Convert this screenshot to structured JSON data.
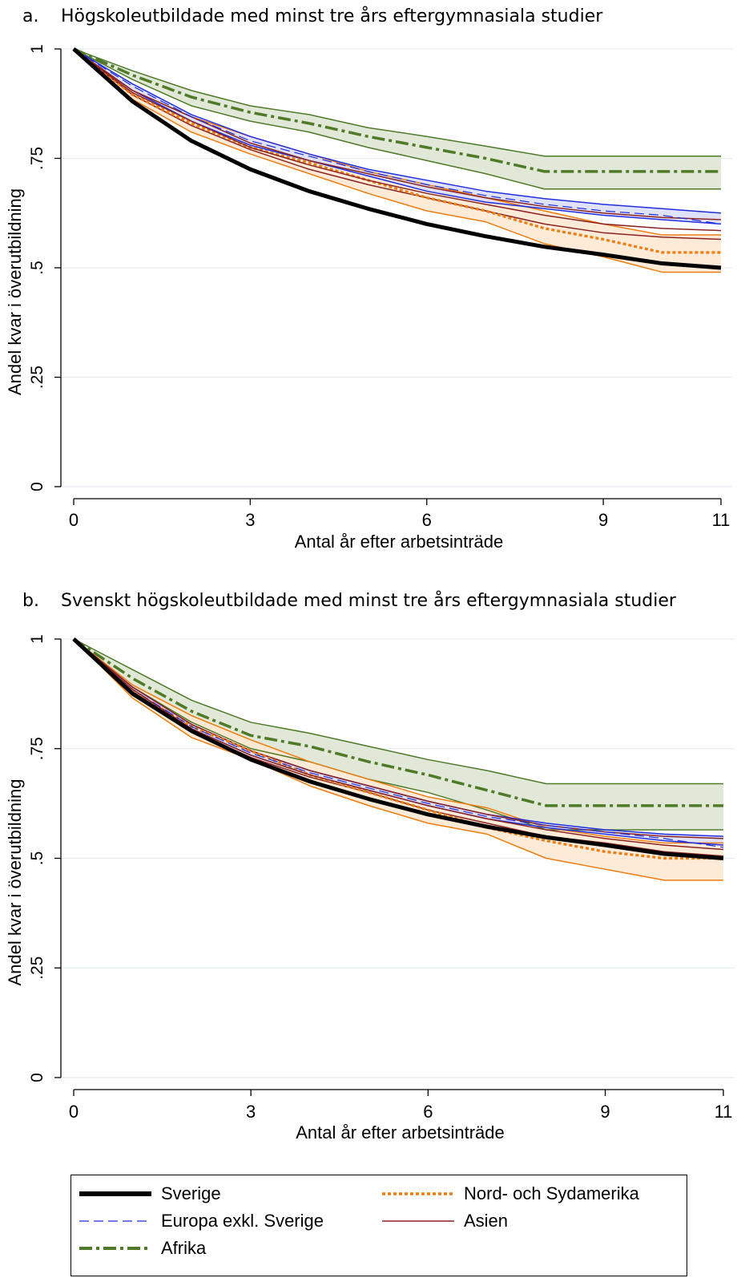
{
  "panels": [
    {
      "letter": "a.",
      "title": "Högskoleutbildade med minst tre års eftergymnasiala studier"
    },
    {
      "letter": "b.",
      "title": "Svenskt högskoleutbildade med minst tre års eftergymnasiala studier"
    }
  ],
  "legend": [
    {
      "label": "Sverige"
    },
    {
      "label": "Nord- och Sydamerika"
    },
    {
      "label": "Europa exkl. Sverige"
    },
    {
      "label": "Asien"
    },
    {
      "label": "Afrika"
    }
  ],
  "chart_data": [
    {
      "type": "line",
      "title": "Högskoleutbildade med minst tre års eftergymnasiala studier",
      "xlabel": "Antal år efter arbetsinträde",
      "ylabel": "Andel kvar i överutbildning",
      "xticks": [
        "0",
        "3",
        "6",
        "9",
        "11"
      ],
      "yticks": [
        "0",
        ".25",
        ".5",
        ".75",
        "1"
      ],
      "xlim": [
        0,
        11
      ],
      "ylim": [
        0,
        1
      ],
      "x": [
        0,
        1,
        2,
        3,
        4,
        5,
        6,
        7,
        8,
        9,
        10,
        11
      ],
      "series": [
        {
          "name": "Afrika",
          "color": "#4f7a28",
          "values": [
            1,
            0.94,
            0.89,
            0.855,
            0.83,
            0.8,
            0.775,
            0.75,
            0.72,
            0.72,
            0.72,
            0.72
          ],
          "ci_low": [
            1,
            0.93,
            0.87,
            0.835,
            0.81,
            0.775,
            0.745,
            0.715,
            0.68,
            0.68,
            0.68,
            0.68
          ],
          "ci_high": [
            1,
            0.95,
            0.905,
            0.87,
            0.85,
            0.82,
            0.8,
            0.778,
            0.755,
            0.755,
            0.755,
            0.755
          ]
        },
        {
          "name": "Nord- och Sydamerika",
          "color": "#ed7d10",
          "values": [
            1,
            0.895,
            0.83,
            0.775,
            0.74,
            0.7,
            0.66,
            0.63,
            0.59,
            0.565,
            0.535,
            0.535
          ],
          "ci_low": [
            1,
            0.885,
            0.81,
            0.76,
            0.715,
            0.67,
            0.63,
            0.605,
            0.555,
            0.525,
            0.49,
            0.49
          ],
          "ci_high": [
            1,
            0.905,
            0.845,
            0.8,
            0.76,
            0.72,
            0.69,
            0.66,
            0.63,
            0.6,
            0.575,
            0.575
          ]
        },
        {
          "name": "Europa exkl. Sverige",
          "color": "#1f2ee0",
          "values": [
            1,
            0.915,
            0.845,
            0.79,
            0.755,
            0.72,
            0.69,
            0.665,
            0.645,
            0.63,
            0.62,
            0.6
          ],
          "ci_low": [
            1,
            0.905,
            0.835,
            0.78,
            0.745,
            0.71,
            0.675,
            0.65,
            0.635,
            0.62,
            0.61,
            0.6
          ],
          "ci_high": [
            1,
            0.92,
            0.85,
            0.8,
            0.76,
            0.725,
            0.7,
            0.675,
            0.658,
            0.645,
            0.635,
            0.625
          ]
        },
        {
          "name": "Asien",
          "color": "#8b2323",
          "values": [
            1,
            0.9,
            0.835,
            0.775,
            0.735,
            0.7,
            0.67,
            0.645,
            0.62,
            0.6,
            0.59,
            0.585
          ],
          "ci_low": [
            1,
            0.895,
            0.825,
            0.77,
            0.725,
            0.69,
            0.66,
            0.63,
            0.6,
            0.58,
            0.57,
            0.565
          ],
          "ci_high": [
            1,
            0.905,
            0.845,
            0.785,
            0.745,
            0.715,
            0.685,
            0.66,
            0.64,
            0.625,
            0.615,
            0.61
          ]
        },
        {
          "name": "Sverige",
          "color": "#000000",
          "values": [
            1,
            0.88,
            0.79,
            0.725,
            0.675,
            0.635,
            0.6,
            0.572,
            0.548,
            0.53,
            0.51,
            0.5
          ]
        }
      ]
    },
    {
      "type": "line",
      "title": "Svenskt högskoleutbildade med minst tre års eftergymnasiala studier",
      "xlabel": "Antal år efter arbetsinträde",
      "ylabel": "Andel kvar i överutbildning",
      "xticks": [
        "0",
        "3",
        "6",
        "9",
        "11"
      ],
      "yticks": [
        "0",
        ".25",
        ".5",
        ".75",
        "1"
      ],
      "xlim": [
        0,
        11
      ],
      "ylim": [
        0,
        1
      ],
      "x": [
        0,
        1,
        2,
        3,
        4,
        5,
        6,
        7,
        8,
        9,
        10,
        11
      ],
      "series": [
        {
          "name": "Afrika",
          "color": "#4f7a28",
          "values": [
            1,
            0.91,
            0.835,
            0.78,
            0.755,
            0.72,
            0.69,
            0.655,
            0.62,
            0.62,
            0.62,
            0.62
          ],
          "ci_low": [
            1,
            0.89,
            0.81,
            0.75,
            0.72,
            0.68,
            0.65,
            0.61,
            0.565,
            0.565,
            0.565,
            0.565
          ],
          "ci_high": [
            1,
            0.93,
            0.86,
            0.81,
            0.785,
            0.755,
            0.725,
            0.7,
            0.67,
            0.67,
            0.67,
            0.67
          ]
        },
        {
          "name": "Nord- och Sydamerika",
          "color": "#ed7d10",
          "values": [
            1,
            0.88,
            0.8,
            0.745,
            0.69,
            0.65,
            0.61,
            0.57,
            0.54,
            0.515,
            0.5,
            0.5
          ],
          "ci_low": [
            1,
            0.865,
            0.775,
            0.725,
            0.665,
            0.62,
            0.58,
            0.555,
            0.5,
            0.475,
            0.45,
            0.45
          ],
          "ci_high": [
            1,
            0.895,
            0.825,
            0.77,
            0.72,
            0.68,
            0.64,
            0.615,
            0.57,
            0.55,
            0.535,
            0.535
          ]
        },
        {
          "name": "Europa exkl. Sverige",
          "color": "#1f2ee0",
          "values": [
            1,
            0.885,
            0.8,
            0.74,
            0.695,
            0.66,
            0.625,
            0.595,
            0.575,
            0.56,
            0.545,
            0.525
          ],
          "ci_low": [
            1,
            0.88,
            0.795,
            0.735,
            0.69,
            0.655,
            0.62,
            0.59,
            0.57,
            0.555,
            0.54,
            0.53
          ],
          "ci_high": [
            1,
            0.89,
            0.805,
            0.745,
            0.7,
            0.665,
            0.63,
            0.6,
            0.58,
            0.565,
            0.555,
            0.55
          ]
        },
        {
          "name": "Asien",
          "color": "#8b2323",
          "values": [
            1,
            0.885,
            0.795,
            0.735,
            0.69,
            0.655,
            0.62,
            0.59,
            0.565,
            0.545,
            0.53,
            0.52
          ],
          "ci_low": [
            1,
            0.88,
            0.79,
            0.73,
            0.685,
            0.65,
            0.61,
            0.58,
            0.55,
            0.535,
            0.515,
            0.505
          ],
          "ci_high": [
            1,
            0.89,
            0.805,
            0.745,
            0.7,
            0.665,
            0.63,
            0.6,
            0.575,
            0.56,
            0.55,
            0.545
          ]
        },
        {
          "name": "Sverige",
          "color": "#000000",
          "values": [
            1,
            0.875,
            0.79,
            0.725,
            0.675,
            0.635,
            0.6,
            0.572,
            0.548,
            0.53,
            0.51,
            0.5
          ]
        }
      ]
    }
  ]
}
